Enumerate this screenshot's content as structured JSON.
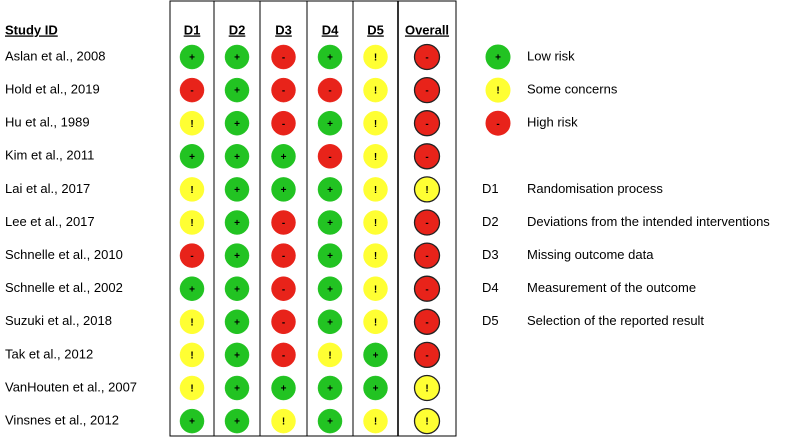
{
  "header": {
    "study": "Study ID",
    "columns": [
      "D1",
      "D2",
      "D3",
      "D4",
      "D5",
      "Overall"
    ]
  },
  "rows": [
    {
      "study": "Aslan et al., 2008",
      "judgments": [
        "+",
        "+",
        "-",
        "+",
        "!",
        "-"
      ]
    },
    {
      "study": "Hold et al., 2019",
      "judgments": [
        "-",
        "+",
        "-",
        "-",
        "!",
        "-"
      ]
    },
    {
      "study": "Hu et al., 1989",
      "judgments": [
        "!",
        "+",
        "-",
        "+",
        "!",
        "-"
      ]
    },
    {
      "study": "Kim et al., 2011",
      "judgments": [
        "+",
        "+",
        "+",
        "-",
        "!",
        "-"
      ]
    },
    {
      "study": "Lai et al., 2017",
      "judgments": [
        "!",
        "+",
        "+",
        "+",
        "!",
        "!"
      ]
    },
    {
      "study": "Lee et al., 2017",
      "judgments": [
        "!",
        "+",
        "-",
        "+",
        "!",
        "-"
      ]
    },
    {
      "study": "Schnelle et al., 2010",
      "judgments": [
        "-",
        "+",
        "-",
        "+",
        "!",
        "-"
      ]
    },
    {
      "study": "Schnelle et al., 2002",
      "judgments": [
        "+",
        "+",
        "-",
        "+",
        "!",
        "-"
      ]
    },
    {
      "study": "Suzuki et al., 2018",
      "judgments": [
        "!",
        "+",
        "-",
        "+",
        "!",
        "-"
      ]
    },
    {
      "study": "Tak et al., 2012",
      "judgments": [
        "!",
        "+",
        "-",
        "!",
        "+",
        "-"
      ]
    },
    {
      "study": "VanHouten et al., 2007",
      "judgments": [
        "!",
        "+",
        "+",
        "+",
        "+",
        "!"
      ]
    },
    {
      "study": "Vinsnes et al., 2012",
      "judgments": [
        "+",
        "+",
        "!",
        "+",
        "!",
        "!"
      ]
    }
  ],
  "legend": [
    {
      "symbol": "+",
      "label": "Low risk",
      "color": "#22c322"
    },
    {
      "symbol": "!",
      "label": "Some concerns",
      "color": "#ffff33"
    },
    {
      "symbol": "-",
      "label": "High risk",
      "color": "#e8231a"
    }
  ],
  "domain_key": [
    {
      "code": "D1",
      "label": "Randomisation process"
    },
    {
      "code": "D2",
      "label": "Deviations from the intended interventions"
    },
    {
      "code": "D3",
      "label": "Missing outcome data"
    },
    {
      "code": "D4",
      "label": "Measurement of the outcome"
    },
    {
      "code": "D5",
      "label": "Selection of the reported result"
    }
  ]
}
